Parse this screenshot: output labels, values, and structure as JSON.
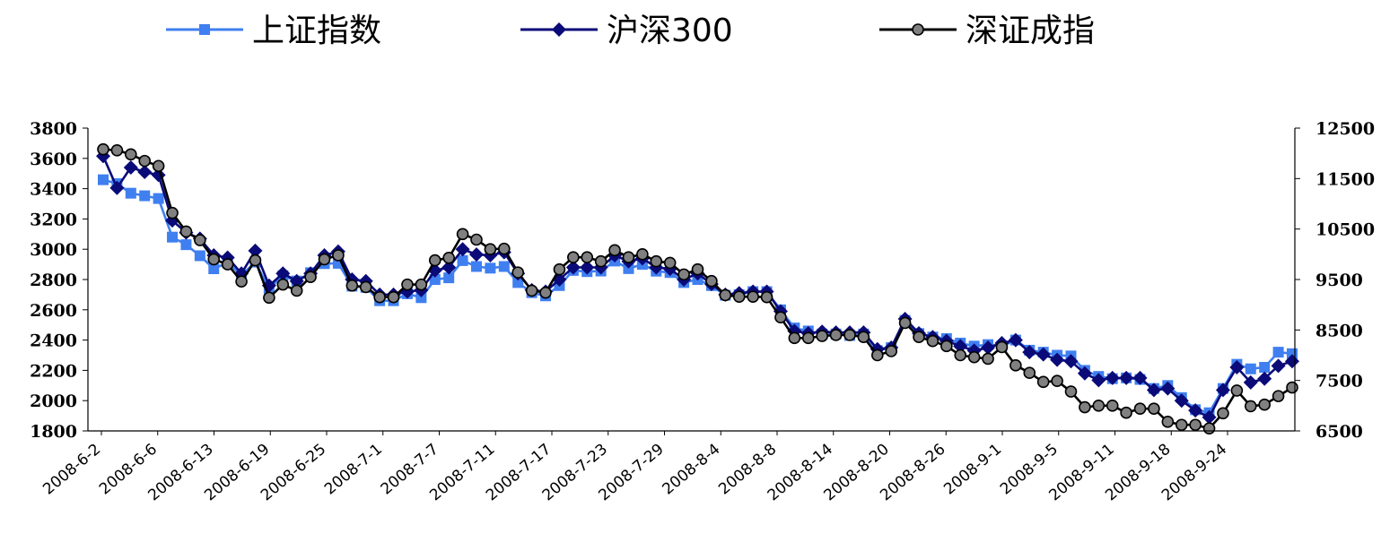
{
  "chart_data": {
    "type": "line",
    "legend_position": "top",
    "left_axis": {
      "min": 1800,
      "max": 3800,
      "ticks": [
        3800,
        3600,
        3400,
        3200,
        3000,
        2800,
        2600,
        2400,
        2200,
        2000,
        1800
      ]
    },
    "right_axis": {
      "min": 6500,
      "max": 12500,
      "ticks": [
        12500,
        11500,
        10500,
        9500,
        8500,
        7500,
        6500
      ]
    },
    "x_tick_labels": [
      "2008-6-2",
      "2008-6-6",
      "2008-6-13",
      "2008-6-19",
      "2008-6-25",
      "2008-7-1",
      "2008-7-7",
      "2008-7-11",
      "2008-7-17",
      "2008-7-23",
      "2008-7-29",
      "2008-8-4",
      "2008-8-8",
      "2008-8-14",
      "2008-8-20",
      "2008-8-26",
      "2008-9-1",
      "2008-9-5",
      "2008-9-11",
      "2008-9-18",
      "2008-9-24"
    ],
    "series": [
      {
        "name": "上证指数",
        "axis": "left",
        "color": "#3f7ff0",
        "marker": "square",
        "values": [
          3459,
          3433,
          3370,
          3353,
          3335,
          3080,
          3030,
          2957,
          2871,
          2911,
          2829,
          2915,
          2740,
          2825,
          2790,
          2845,
          2905,
          2907,
          2756,
          2748,
          2660,
          2660,
          2706,
          2680,
          2800,
          2811,
          2925,
          2886,
          2875,
          2886,
          2780,
          2713,
          2692,
          2760,
          2860,
          2852,
          2856,
          2922,
          2872,
          2900,
          2855,
          2846,
          2780,
          2800,
          2760,
          2696,
          2700,
          2720,
          2720,
          2600,
          2480,
          2460,
          2440,
          2440,
          2430,
          2440,
          2330,
          2350,
          2530,
          2443,
          2420,
          2410,
          2380,
          2360,
          2370,
          2360,
          2400,
          2333,
          2320,
          2300,
          2295,
          2200,
          2160,
          2145,
          2150,
          2140,
          2080,
          2100,
          2020,
          1940,
          1920,
          2080,
          2240,
          2210,
          2220,
          2320,
          2310
        ]
      },
      {
        "name": "沪深300",
        "axis": "left",
        "color": "#0a0a78",
        "marker": "diamond",
        "values": [
          3615,
          3405,
          3540,
          3510,
          3490,
          3190,
          3110,
          3070,
          2960,
          2945,
          2840,
          2990,
          2760,
          2840,
          2790,
          2840,
          2960,
          2985,
          2800,
          2790,
          2700,
          2700,
          2720,
          2730,
          2860,
          2880,
          3000,
          2965,
          2960,
          2980,
          2840,
          2730,
          2720,
          2800,
          2880,
          2880,
          2880,
          2960,
          2920,
          2940,
          2880,
          2870,
          2800,
          2840,
          2770,
          2700,
          2710,
          2720,
          2720,
          2590,
          2460,
          2445,
          2455,
          2450,
          2450,
          2450,
          2340,
          2350,
          2540,
          2445,
          2420,
          2395,
          2360,
          2330,
          2350,
          2380,
          2400,
          2320,
          2305,
          2270,
          2260,
          2180,
          2135,
          2150,
          2150,
          2150,
          2070,
          2080,
          2000,
          1935,
          1890,
          2070,
          2220,
          2120,
          2145,
          2230,
          2260
        ]
      },
      {
        "name": "深证成指",
        "axis": "right",
        "color": "#000000",
        "marker": "circle",
        "values": [
          12080,
          12060,
          11980,
          11850,
          11750,
          10820,
          10450,
          10280,
          9900,
          9800,
          9460,
          9880,
          9140,
          9400,
          9280,
          9550,
          9900,
          9980,
          9380,
          9350,
          9150,
          9150,
          9400,
          9400,
          9880,
          9930,
          10400,
          10290,
          10100,
          10110,
          9640,
          9280,
          9240,
          9700,
          9940,
          9940,
          9860,
          10080,
          9940,
          10000,
          9860,
          9830,
          9600,
          9700,
          9470,
          9190,
          9160,
          9160,
          9150,
          8750,
          8340,
          8340,
          8380,
          8400,
          8400,
          8360,
          8000,
          8080,
          8640,
          8360,
          8280,
          8180,
          8000,
          7960,
          7930,
          8160,
          7800,
          7650,
          7470,
          7490,
          7280,
          6970,
          7000,
          7000,
          6860,
          6940,
          6940,
          6680,
          6620,
          6620,
          6550,
          6850,
          7300,
          6990,
          7020,
          7190,
          7360
        ]
      }
    ]
  }
}
